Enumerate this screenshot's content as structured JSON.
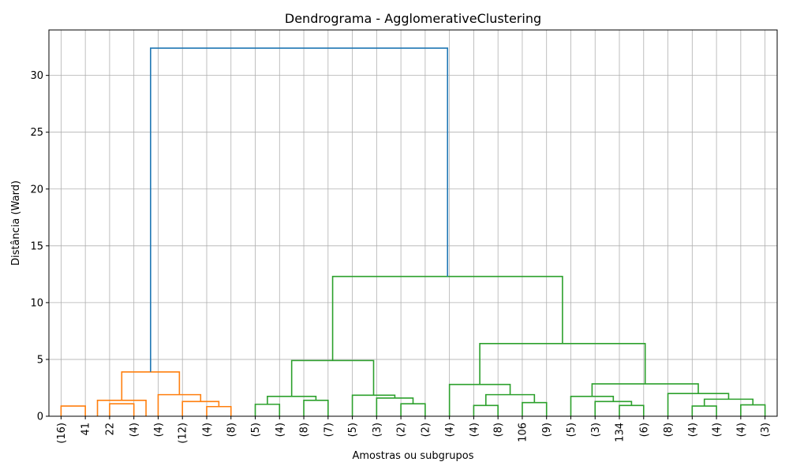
{
  "chart_data": {
    "type": "dendrogram",
    "title": "Dendrograma - AgglomerativeClustering",
    "xlabel": "Amostras ou subgrupos",
    "ylabel": "Distância (Ward)",
    "ylim": [
      0,
      34
    ],
    "yticks": [
      0,
      5,
      10,
      15,
      20,
      25,
      30
    ],
    "grid": true,
    "leaves": [
      "(16)",
      "41",
      "22",
      "(4)",
      "(4)",
      "(12)",
      "(4)",
      "(8)",
      "(5)",
      "(4)",
      "(8)",
      "(7)",
      "(5)",
      "(3)",
      "(2)",
      "(2)",
      "(4)",
      "(4)",
      "(8)",
      "106",
      "(9)",
      "(5)",
      "(3)",
      "134",
      "(6)",
      "(8)",
      "(4)",
      "(4)",
      "(4)",
      "(3)"
    ],
    "colors": {
      "root": "#1f77b4",
      "cluster1": "#ff7f0e",
      "cluster2": "#2ca02c"
    },
    "merges": [
      {
        "left": 0,
        "right": 1,
        "height": 0.9,
        "color": "cluster1"
      },
      {
        "left": 2,
        "right": 3,
        "height": 1.1,
        "color": "cluster1"
      },
      {
        "left": 1.5,
        "right": 3.5,
        "height": 1.4,
        "color": "cluster1"
      },
      {
        "left": 6,
        "right": 7,
        "height": 0.85,
        "color": "cluster1"
      },
      {
        "left": 5,
        "right": 6.5,
        "height": 1.3,
        "color": "cluster1"
      },
      {
        "left": 4,
        "right": 5.75,
        "height": 1.9,
        "color": "cluster1"
      },
      {
        "left": 2.5,
        "right": 4.875,
        "height": 3.9,
        "color": "cluster1"
      },
      {
        "left": 8,
        "right": 9,
        "height": 1.05,
        "color": "cluster2"
      },
      {
        "left": 10,
        "right": 11,
        "height": 1.4,
        "color": "cluster2"
      },
      {
        "left": 8.5,
        "right": 10.5,
        "height": 1.75,
        "color": "cluster2"
      },
      {
        "left": 14,
        "right": 15,
        "height": 1.1,
        "color": "cluster2"
      },
      {
        "left": 13,
        "right": 14.5,
        "height": 1.6,
        "color": "cluster2"
      },
      {
        "left": 12,
        "right": 13.75,
        "height": 1.85,
        "color": "cluster2"
      },
      {
        "left": 9.5,
        "right": 12.875,
        "height": 4.9,
        "color": "cluster2"
      },
      {
        "left": 17,
        "right": 18,
        "height": 0.95,
        "color": "cluster2"
      },
      {
        "left": 19,
        "right": 20,
        "height": 1.2,
        "color": "cluster2"
      },
      {
        "left": 17.5,
        "right": 19.5,
        "height": 1.9,
        "color": "cluster2"
      },
      {
        "left": 16,
        "right": 18.5,
        "height": 2.8,
        "color": "cluster2"
      },
      {
        "left": 23,
        "right": 24,
        "height": 0.95,
        "color": "cluster2"
      },
      {
        "left": 22,
        "right": 23.5,
        "height": 1.3,
        "color": "cluster2"
      },
      {
        "left": 21,
        "right": 22.75,
        "height": 1.75,
        "color": "cluster2"
      },
      {
        "left": 26,
        "right": 27,
        "height": 0.9,
        "color": "cluster2"
      },
      {
        "left": 28,
        "right": 29,
        "height": 1.0,
        "color": "cluster2"
      },
      {
        "left": 26.5,
        "right": 28.5,
        "height": 1.5,
        "color": "cluster2"
      },
      {
        "left": 25,
        "right": 27.5,
        "height": 2.0,
        "color": "cluster2"
      },
      {
        "left": 21.875,
        "right": 26.25,
        "height": 2.85,
        "color": "cluster2"
      },
      {
        "left": 17.25,
        "right": 24.0625,
        "height": 6.4,
        "color": "cluster2"
      },
      {
        "left": 11.1875,
        "right": 20.65625,
        "height": 12.3,
        "color": "cluster2"
      },
      {
        "left": 3.6875,
        "right": 15.921875,
        "height": 32.4,
        "color": "root"
      }
    ]
  }
}
